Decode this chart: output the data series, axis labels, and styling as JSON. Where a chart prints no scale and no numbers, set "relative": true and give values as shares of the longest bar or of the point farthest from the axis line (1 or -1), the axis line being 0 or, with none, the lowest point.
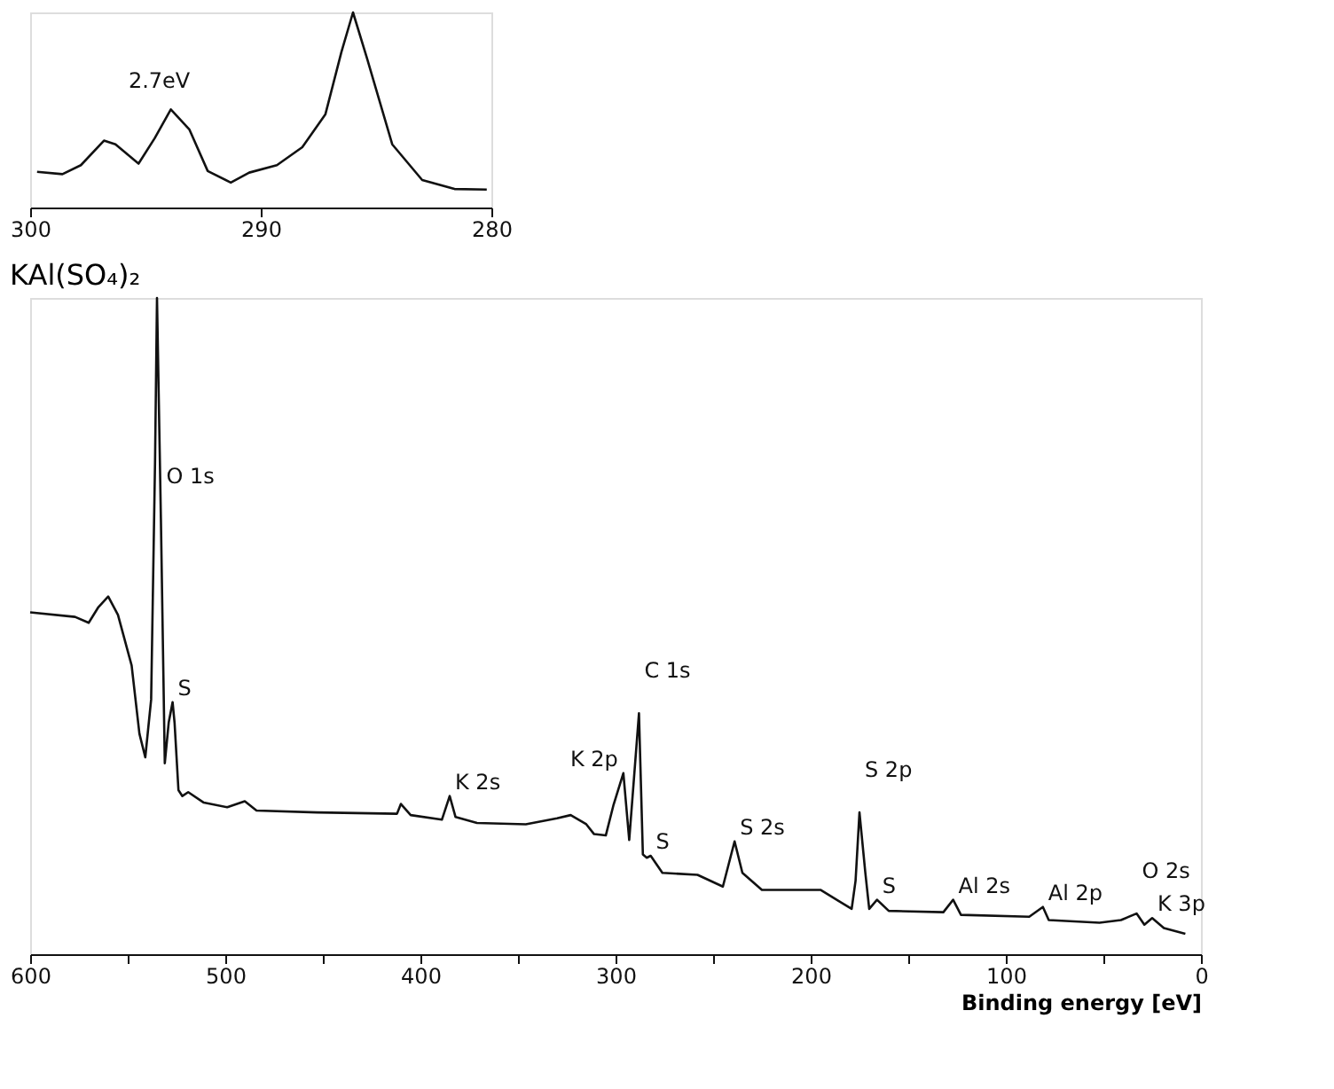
{
  "chart_data": [
    {
      "type": "line",
      "relative": true,
      "tick_labels": "x",
      "xlim": [
        300,
        280
      ],
      "xticks": [
        300,
        290,
        280
      ],
      "x": [
        299.7,
        298.6,
        297.8,
        296.8,
        296.3,
        295.3,
        294.6,
        293.9,
        293.1,
        292.3,
        291.3,
        290.5,
        289.3,
        288.2,
        287.2,
        286.5,
        286.0,
        285.4,
        284.3,
        283.0,
        281.6,
        280.2
      ],
      "series": [
        {
          "color": "#111111",
          "values": [
            0.183,
            0.171,
            0.217,
            0.343,
            0.324,
            0.225,
            0.355,
            0.503,
            0.401,
            0.187,
            0.128,
            0.179,
            0.217,
            0.309,
            0.477,
            0.798,
            1.0,
            0.768,
            0.324,
            0.141,
            0.095,
            0.092
          ]
        }
      ],
      "annotations": [
        "2.7eV"
      ]
    },
    {
      "type": "line",
      "relative": true,
      "tick_labels": "x",
      "title": "KAl(SO₄)₂",
      "xlabel": "Binding energy [eV]",
      "xlim": [
        600,
        0
      ],
      "xticks": [
        600,
        {
          "value": 550,
          "label": null
        },
        500,
        {
          "value": 450,
          "label": null
        },
        400,
        {
          "value": 350,
          "label": null
        },
        300,
        {
          "value": 250,
          "label": null
        },
        200,
        {
          "value": 150,
          "label": null
        },
        100,
        {
          "value": 50,
          "label": null
        },
        0
      ],
      "x": [
        600,
        577,
        570,
        565,
        560,
        555,
        548,
        544,
        541,
        538,
        536,
        535,
        533,
        531,
        529,
        527,
        526,
        524,
        522,
        519,
        511,
        499,
        490,
        484,
        453,
        412,
        410,
        405,
        389,
        385,
        382,
        371,
        346,
        330,
        323,
        315,
        311,
        305,
        301,
        296,
        293,
        288,
        286,
        284,
        282,
        276,
        258,
        245,
        239,
        235,
        225,
        195,
        179,
        177,
        175,
        172,
        170,
        166,
        160,
        132,
        127,
        123,
        88,
        81,
        78,
        52,
        41,
        33,
        29,
        25,
        19,
        8
      ],
      "series": [
        {
          "color": "#111111",
          "values": [
            0.521,
            0.514,
            0.505,
            0.529,
            0.545,
            0.517,
            0.44,
            0.336,
            0.3,
            0.388,
            0.75,
            1.0,
            0.664,
            0.291,
            0.353,
            0.384,
            0.353,
            0.25,
            0.241,
            0.247,
            0.231,
            0.224,
            0.233,
            0.219,
            0.216,
            0.214,
            0.229,
            0.212,
            0.205,
            0.241,
            0.209,
            0.2,
            0.198,
            0.207,
            0.212,
            0.198,
            0.183,
            0.181,
            0.228,
            0.276,
            0.174,
            0.367,
            0.152,
            0.147,
            0.15,
            0.124,
            0.121,
            0.103,
            0.172,
            0.124,
            0.098,
            0.098,
            0.069,
            0.112,
            0.216,
            0.124,
            0.069,
            0.083,
            0.066,
            0.064,
            0.083,
            0.06,
            0.057,
            0.072,
            0.052,
            0.048,
            0.052,
            0.062,
            0.045,
            0.055,
            0.04,
            0.031
          ]
        }
      ],
      "annotations": [
        {
          "text": "O 1s",
          "x": 533,
          "y": 0.664
        },
        {
          "text": "S",
          "x": 527,
          "y": 0.384
        },
        {
          "text": "K 2s",
          "x": 385,
          "y": 0.241
        },
        {
          "text": "K 2p",
          "x": 296,
          "y": 0.276
        },
        {
          "text": "C 1s",
          "x": 288,
          "y": 0.367
        },
        {
          "text": "S",
          "x": 282,
          "y": 0.15
        },
        {
          "text": "S 2s",
          "x": 239,
          "y": 0.172
        },
        {
          "text": "S 2p",
          "x": 175,
          "y": 0.216
        },
        {
          "text": "S",
          "x": 166,
          "y": 0.083
        },
        {
          "text": "Al 2s",
          "x": 127,
          "y": 0.083
        },
        {
          "text": "Al 2p",
          "x": 81,
          "y": 0.072
        },
        {
          "text": "O 2s",
          "x": 33,
          "y": 0.062
        },
        {
          "text": "K 3p",
          "x": 25,
          "y": 0.055
        }
      ]
    }
  ]
}
